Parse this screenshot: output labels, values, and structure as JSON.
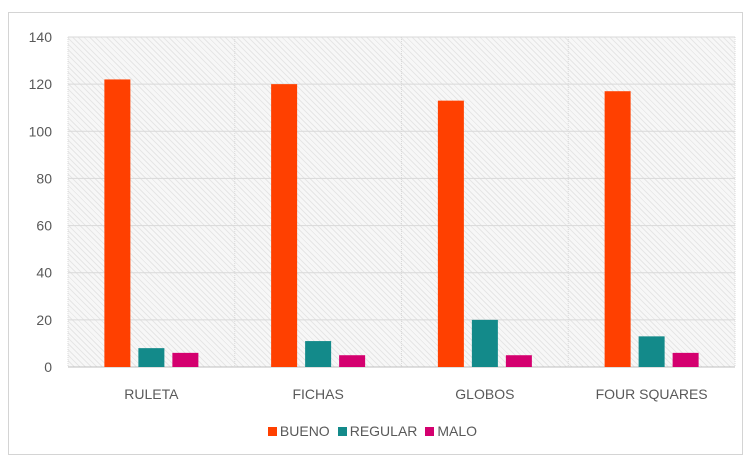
{
  "chart_data": {
    "type": "bar",
    "categories": [
      "RULETA",
      "FICHAS",
      "GLOBOS",
      "FOUR SQUARES"
    ],
    "series": [
      {
        "name": "BUENO",
        "color": "#ff4000",
        "values": [
          122,
          120,
          113,
          117
        ]
      },
      {
        "name": "REGULAR",
        "color": "#138a8a",
        "values": [
          8,
          11,
          20,
          13
        ]
      },
      {
        "name": "MALO",
        "color": "#d4006f",
        "values": [
          6,
          5,
          5,
          6
        ]
      }
    ],
    "yticks": [
      "0",
      "20",
      "40",
      "60",
      "80",
      "100",
      "120",
      "140"
    ],
    "ylim": [
      0,
      140
    ],
    "grid": true,
    "legend_position": "bottom"
  }
}
